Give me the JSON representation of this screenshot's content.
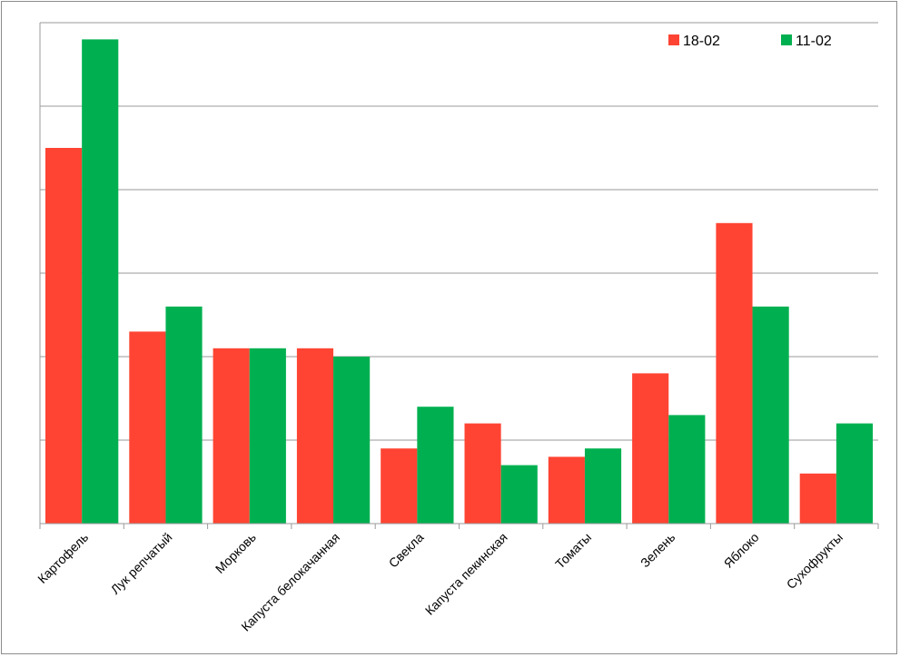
{
  "chart_data": {
    "type": "bar",
    "categories": [
      "Картофель",
      "Лук репчатый",
      "Морковь",
      "Капуста белокачанная",
      "Свекла",
      "Капуста пекинская",
      "Томаты",
      "Зелень",
      "Яблоко",
      "Сухофрукты"
    ],
    "series": [
      {
        "name": "18-02",
        "color": "#ff4433",
        "values": [
          4.5,
          2.3,
          2.1,
          2.1,
          0.9,
          1.2,
          0.8,
          1.8,
          3.6,
          0.6
        ]
      },
      {
        "name": "11-02",
        "color": "#00b050",
        "values": [
          5.8,
          2.6,
          2.1,
          2.0,
          1.4,
          0.7,
          0.9,
          1.3,
          2.6,
          1.2
        ]
      }
    ],
    "ylim": [
      0,
      6
    ],
    "y_gridlines": [
      1,
      2,
      3,
      4,
      5,
      6
    ],
    "grid": true,
    "legend_position": "top-right"
  }
}
